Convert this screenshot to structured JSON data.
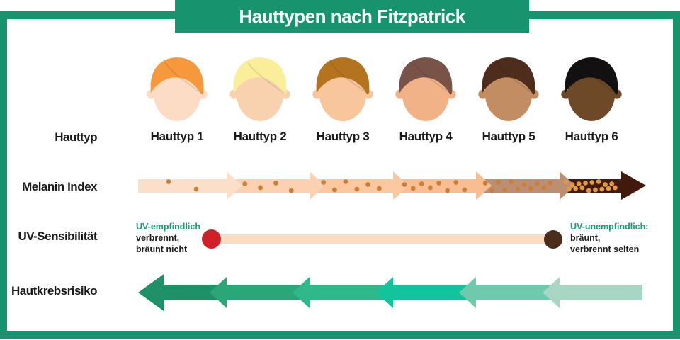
{
  "title": "Hauttypen nach Fitzpatrick",
  "row_labels": {
    "types": "Hauttyp",
    "melanin": "Melanin Index",
    "uv": "UV-Sensibilität",
    "cancer": "Hautkrebsrisiko"
  },
  "skin_types": [
    {
      "label": "Hauttyp 1",
      "hair_color": "#F6993C",
      "skin_color": "#FCDCC5"
    },
    {
      "label": "Hauttyp 2",
      "hair_color": "#FAEE9B",
      "skin_color": "#F8D2AF"
    },
    {
      "label": "Hauttyp 3",
      "hair_color": "#B4741F",
      "skin_color": "#F8C69D"
    },
    {
      "label": "Hauttyp 4",
      "hair_color": "#7A5348",
      "skin_color": "#F1B287"
    },
    {
      "label": "Hauttyp 5",
      "hair_color": "#4F2D1C",
      "skin_color": "#C28D63"
    },
    {
      "label": "Hauttyp 6",
      "hair_color": "#121010",
      "skin_color": "#6E4927"
    }
  ],
  "melanin": {
    "segment_colors": [
      "#FCDFC9",
      "#FBD1B1",
      "#FAC79E",
      "#F8BD90",
      "#BC8F72",
      "#41190D"
    ],
    "dot_counts": [
      2,
      4,
      6,
      8,
      11,
      16
    ],
    "dot_color": "#C9803A",
    "dot_color_on_dark": "#E09A43"
  },
  "uv": {
    "bar_color": "#FADCC0",
    "sensitive_dot_color": "#D02128",
    "insensitive_dot_color": "#4A2D1B",
    "left": {
      "heading": "UV-empfindlich",
      "line1": "verbrennt,",
      "line2": "bräunt nicht"
    },
    "right": {
      "heading": "UV-unempfindlich:",
      "line1": "bräunt,",
      "line2": "verbrennt selten"
    }
  },
  "cancer": {
    "segment_colors": [
      "#1F9168",
      "#2AA679",
      "#2FB98B",
      "#13C39B",
      "#6FC9AD",
      "#A7D6C4"
    ]
  },
  "colors": {
    "brand_green": "#17946D",
    "heading_green": "#159C77",
    "text": "#1A1A1A",
    "background": "#FFFFFF"
  }
}
